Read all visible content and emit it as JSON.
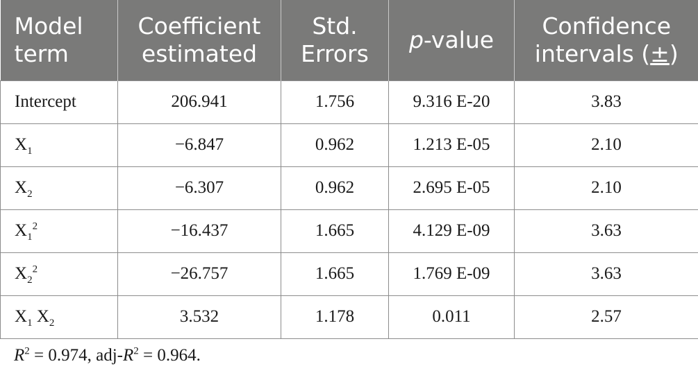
{
  "table": {
    "headers": {
      "model_term": [
        "Model",
        "term"
      ],
      "coefficient": [
        "Coefficient",
        "estimated"
      ],
      "std_errors": [
        "Std.",
        "Errors"
      ],
      "p_value": {
        "italic": "p",
        "rest": "-value"
      },
      "confidence": [
        "Confidence",
        "intervals (",
        "±",
        ")"
      ]
    },
    "rows": [
      {
        "term": {
          "base": "Intercept"
        },
        "coefficient": "206.941",
        "std_error": "1.756",
        "p_value": "9.316 E-20",
        "ci": "3.83"
      },
      {
        "term": {
          "base": "X",
          "sub": "1"
        },
        "coefficient": "−6.847",
        "std_error": "0.962",
        "p_value": "1.213 E-05",
        "ci": "2.10"
      },
      {
        "term": {
          "base": "X",
          "sub": "2"
        },
        "coefficient": "−6.307",
        "std_error": "0.962",
        "p_value": "2.695 E-05",
        "ci": "2.10"
      },
      {
        "term": {
          "base": "X",
          "sub": "1",
          "sup": "2"
        },
        "coefficient": "−16.437",
        "std_error": "1.665",
        "p_value": "4.129 E-09",
        "ci": "3.63"
      },
      {
        "term": {
          "base": "X",
          "sub": "2",
          "sup": "2"
        },
        "coefficient": "−26.757",
        "std_error": "1.665",
        "p_value": "1.769 E-09",
        "ci": "3.63"
      },
      {
        "term": {
          "base": "X",
          "sub": "1",
          "base2": " X",
          "sub2": "2"
        },
        "coefficient": "3.532",
        "std_error": "1.178",
        "p_value": "0.011",
        "ci": "2.57"
      }
    ]
  },
  "footnote": {
    "r": "R",
    "r_sup": "2",
    "r_value": " = 0.974, adj-",
    "adj_r": "R",
    "adj_sup": "2",
    "adj_value": " = 0.964."
  }
}
